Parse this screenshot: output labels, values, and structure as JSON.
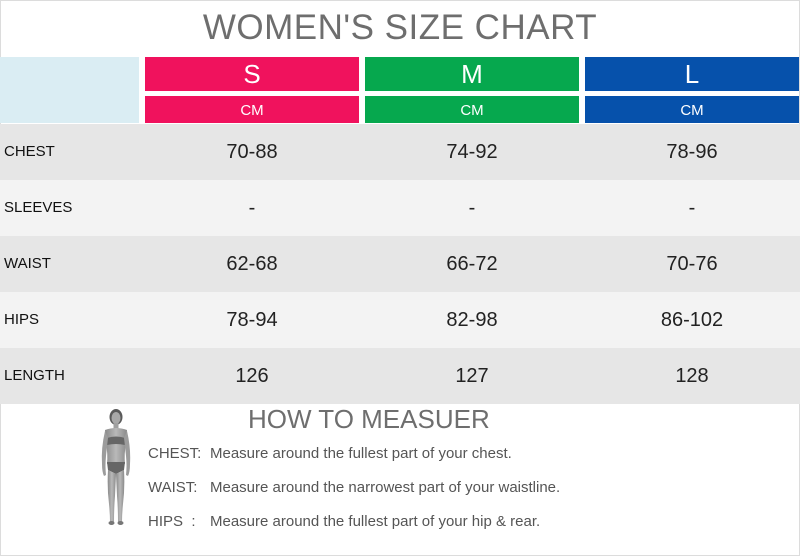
{
  "title": "WOMEN'S SIZE CHART",
  "sizes": [
    {
      "label": "S",
      "unit": "CM",
      "color": "#f0125d"
    },
    {
      "label": "M",
      "unit": "CM",
      "color": "#06a84e"
    },
    {
      "label": "L",
      "unit": "CM",
      "color": "#0651ab"
    }
  ],
  "rows": [
    {
      "label": "CHEST",
      "values": [
        "70-88",
        "74-92",
        "78-96"
      ]
    },
    {
      "label": "SLEEVES",
      "values": [
        "-",
        "-",
        "-"
      ]
    },
    {
      "label": "WAIST",
      "values": [
        "62-68",
        "66-72",
        "70-76"
      ]
    },
    {
      "label": "HIPS",
      "values": [
        "78-94",
        "82-98",
        "86-102"
      ]
    },
    {
      "label": "LENGTH",
      "values": [
        "126",
        "127",
        "128"
      ]
    }
  ],
  "colors": {
    "row_dark": "#e6e6e6",
    "row_light": "#f3f3f3",
    "corner": "#daedf3"
  },
  "how_to": {
    "title": "HOW TO MEASUER",
    "figure_icon": "woman-silhouette-icon",
    "items": [
      {
        "label": "CHEST:",
        "text": "Measure around the fullest part of your chest."
      },
      {
        "label": "WAIST:",
        "text": "Measure around the narrowest part of your waistline."
      },
      {
        "label": "HIPS  :",
        "text": "Measure around the fullest part of your hip & rear."
      }
    ]
  }
}
